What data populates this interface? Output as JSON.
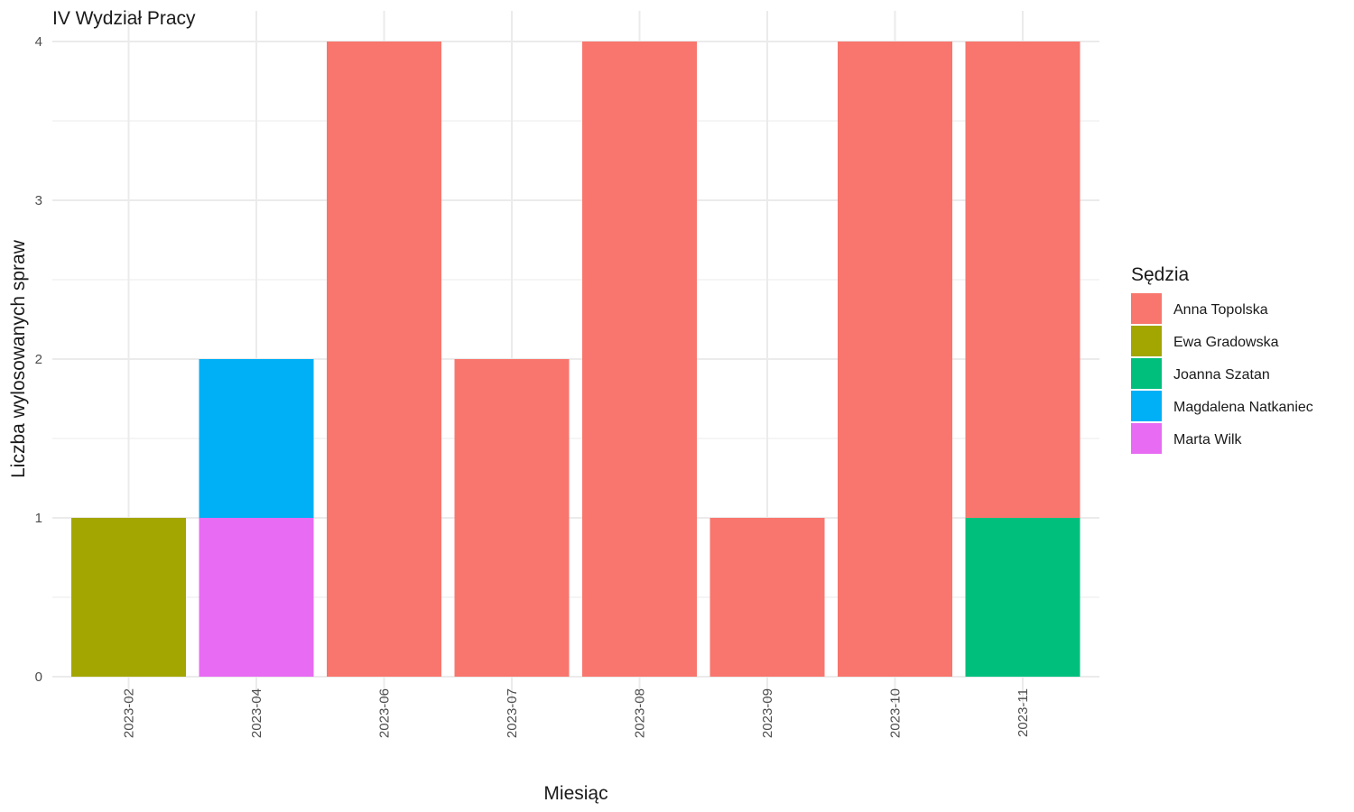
{
  "chart_data": {
    "type": "bar",
    "stacked": true,
    "title": "IV Wydział Pracy",
    "xlabel": "Miesiąc",
    "ylabel": "Liczba wylosowanych spraw",
    "categories": [
      "2023-02",
      "2023-04",
      "2023-06",
      "2023-07",
      "2023-08",
      "2023-09",
      "2023-10",
      "2023-11"
    ],
    "ylim": [
      0,
      4
    ],
    "yticks": [
      0,
      1,
      2,
      3,
      4
    ],
    "grid": true,
    "legend": {
      "title": "Sędzia",
      "position": "right"
    },
    "series": [
      {
        "name": "Anna Topolska",
        "color": "#F8766D",
        "values": [
          0,
          0,
          4,
          2,
          4,
          1,
          4,
          3
        ]
      },
      {
        "name": "Ewa Gradowska",
        "color": "#A3A500",
        "values": [
          1,
          0,
          0,
          0,
          0,
          0,
          0,
          0
        ]
      },
      {
        "name": "Joanna Szatan",
        "color": "#00BF7D",
        "values": [
          0,
          0,
          0,
          0,
          0,
          0,
          0,
          1
        ]
      },
      {
        "name": "Magdalena Natkaniec",
        "color": "#00B0F6",
        "values": [
          0,
          1,
          0,
          0,
          0,
          0,
          0,
          0
        ]
      },
      {
        "name": "Marta Wilk",
        "color": "#E76BF3",
        "values": [
          0,
          1,
          0,
          0,
          0,
          0,
          0,
          0
        ]
      }
    ]
  }
}
